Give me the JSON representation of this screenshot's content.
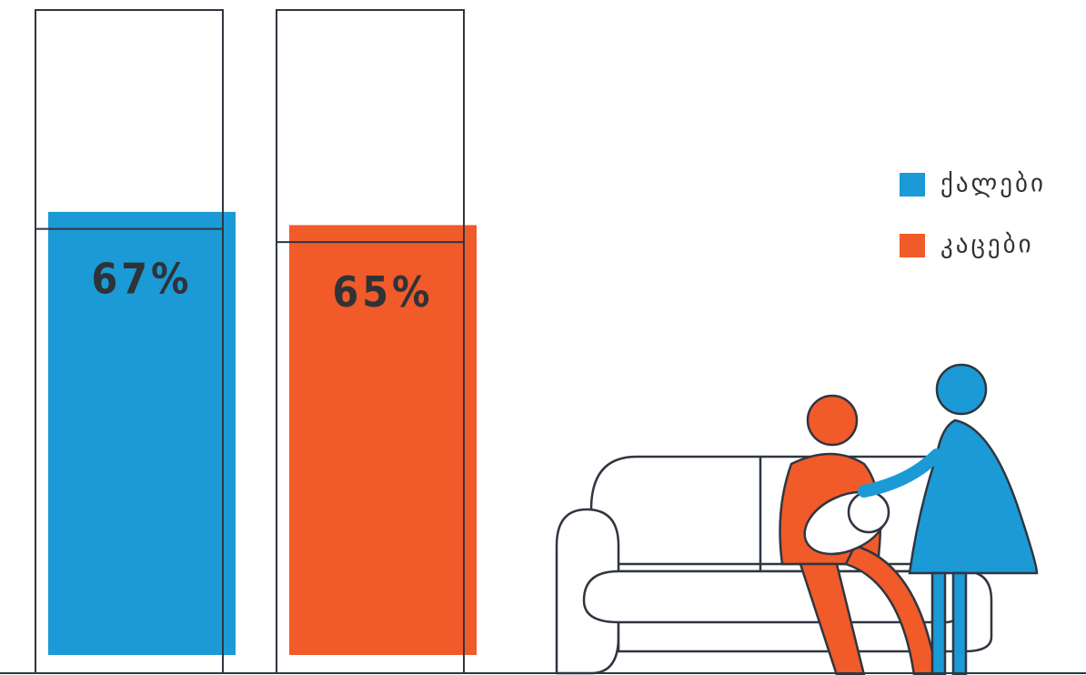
{
  "chart_data": {
    "type": "bar",
    "categories": [
      null
    ],
    "series": [
      {
        "name": "ქალები",
        "color": "#1b9ad6",
        "values": [
          67
        ],
        "value_labels": [
          "67%"
        ]
      },
      {
        "name": "კაცები",
        "color": "#f15a29",
        "values": [
          65
        ],
        "value_labels": [
          "65%"
        ]
      }
    ],
    "ylim": [
      0,
      100
    ]
  }
}
